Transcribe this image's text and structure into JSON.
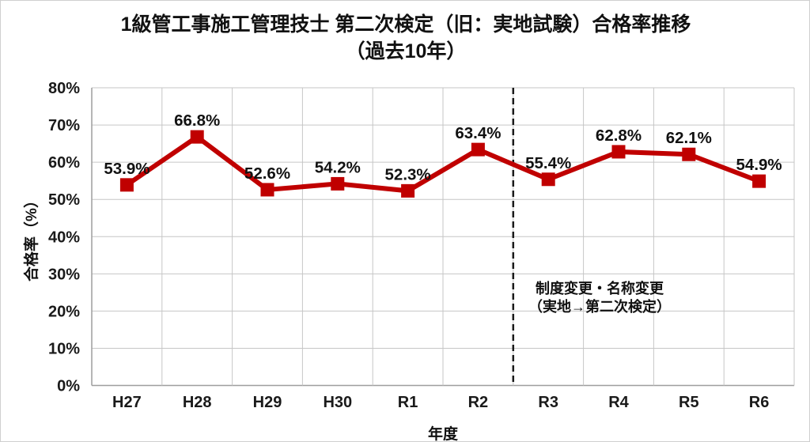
{
  "title": {
    "line1": "1級管工事施工管理技士 第二次検定（旧：実地試験）合格率推移",
    "line2": "（過去10年）"
  },
  "chart_data": {
    "type": "line",
    "title": "1級管工事施工管理技士 第二次検定（旧：実地試験）合格率推移（過去10年）",
    "categories": [
      "H27",
      "H28",
      "H29",
      "H30",
      "R1",
      "R2",
      "R3",
      "R4",
      "R5",
      "R6"
    ],
    "series": [
      {
        "name": "合格率",
        "values": [
          53.9,
          66.8,
          52.6,
          54.2,
          52.3,
          63.4,
          55.4,
          62.8,
          62.1,
          54.9
        ],
        "color": "#C00000",
        "marker": "square"
      }
    ],
    "data_labels": [
      "53.9%",
      "66.8%",
      "52.6%",
      "54.2%",
      "52.3%",
      "63.4%",
      "55.4%",
      "62.8%",
      "62.1%",
      "54.9%"
    ],
    "xlabel": "年度",
    "ylabel": "合格率（%）",
    "ylim": [
      0,
      80
    ],
    "ytick_step": 10,
    "ytick_labels": [
      "0%",
      "10%",
      "20%",
      "30%",
      "40%",
      "50%",
      "60%",
      "70%",
      "80%"
    ],
    "grid": true,
    "legend": false,
    "annotation": {
      "line1": "制度変更・名称変更",
      "line2": "（実地→第二次検定）",
      "divider_after_category": "R2",
      "divider_style": "dashed"
    }
  },
  "colors": {
    "line": "#C00000",
    "grid": "#C6C6C6",
    "axis": "#9E9E9E",
    "text": "#111111",
    "divider": "#1A1A1A",
    "background": "#FFFFFF",
    "border": "#CFCFCF"
  }
}
